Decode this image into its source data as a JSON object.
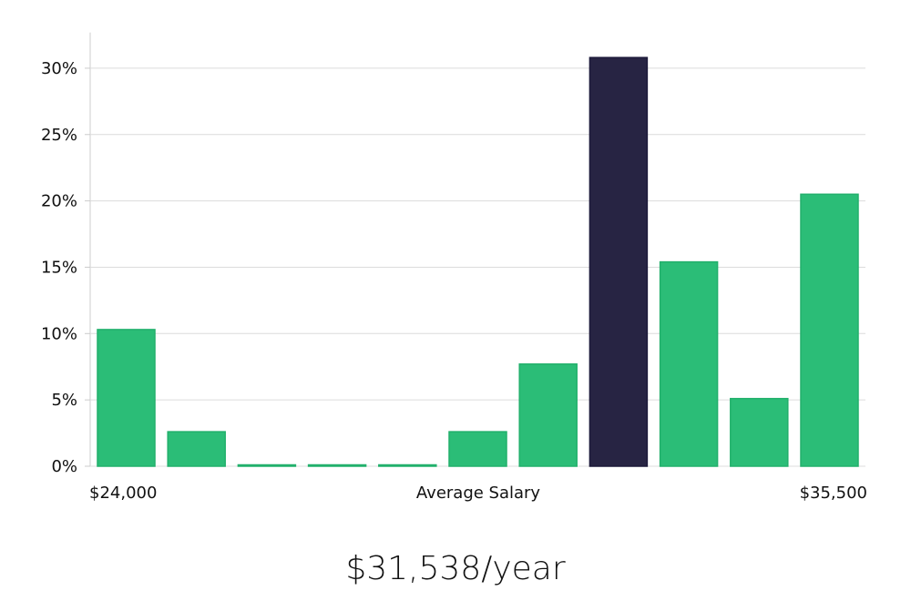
{
  "chart_data": {
    "type": "bar",
    "title": "",
    "xlabel": "Average Salary",
    "ylabel": "",
    "x_min_label": "$24,000",
    "x_max_label": "$35,500",
    "ylim": [
      0,
      32
    ],
    "yticks": [
      0,
      5,
      10,
      15,
      20,
      25,
      30
    ],
    "ytick_labels": [
      "0%",
      "5%",
      "10%",
      "15%",
      "20%",
      "25%",
      "30%"
    ],
    "values": [
      10.3,
      2.6,
      0.1,
      0.1,
      0.1,
      2.6,
      7.7,
      30.8,
      15.4,
      5.1,
      20.5
    ],
    "highlight_index": 7,
    "colors": {
      "bar": "#2bbd77",
      "highlight": "#272443",
      "grid": "#dcdcdc",
      "axis": "#cccccc"
    }
  },
  "summary": {
    "average_salary_text": "$31,538/year"
  }
}
